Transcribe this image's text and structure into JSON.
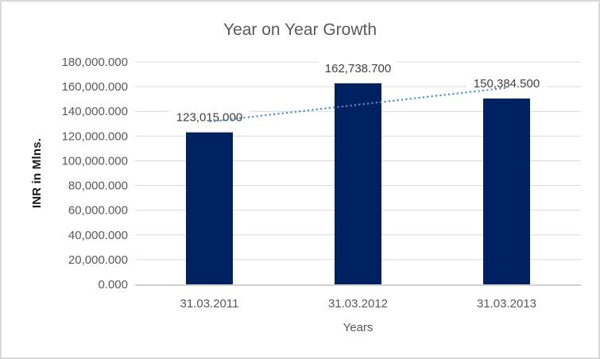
{
  "chart_data": {
    "type": "bar",
    "title": "Year on Year Growth",
    "xlabel": "Years",
    "ylabel": "INR in Mlns.",
    "categories": [
      "31.03.2011",
      "31.03.2012",
      "31.03.2013"
    ],
    "series": [
      {
        "name": "INR in Mlns.",
        "values": [
          123015.0,
          162738.7,
          150384.5
        ]
      }
    ],
    "data_labels": [
      "123,015.000",
      "162,738.700",
      "150,384.500"
    ],
    "ylim": [
      0,
      180000
    ],
    "ytick_step": 20000,
    "ytick_labels": [
      "0.000",
      "20,000.000",
      "40,000.000",
      "60,000.000",
      "80,000.000",
      "100,000.000",
      "120,000.000",
      "140,000.000",
      "160,000.000",
      "180,000.000"
    ],
    "grid": true,
    "legend": false,
    "trendline": {
      "type": "linear",
      "style": "dotted"
    },
    "colors": {
      "bar": "#00215f",
      "trendline": "#4e8ed3",
      "gridline": "#d9d9d9",
      "axis_line": "#d0d0d0",
      "title_text": "#595959",
      "tick_text": "#595959",
      "data_label_text": "#404040",
      "background": "#ffffff",
      "border": "#d9d9d9"
    }
  }
}
